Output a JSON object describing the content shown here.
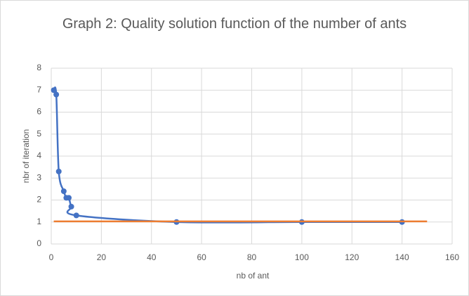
{
  "chart_data": {
    "type": "line",
    "title": "Graph 2: Quality solution function of the number of ants",
    "xlabel": "nb of ant",
    "ylabel": "nbr of iteration",
    "series": [
      {
        "color": "#4472c4",
        "markers": true,
        "smooth": true,
        "x": [
          1,
          2,
          3,
          5,
          6,
          7,
          8,
          10,
          50,
          100,
          140
        ],
        "values": [
          7,
          6.8,
          3.3,
          2.4,
          2.1,
          2.1,
          1.7,
          1.3,
          1,
          1,
          1
        ]
      },
      {
        "color": "#ed7d31",
        "markers": false,
        "smooth": false,
        "x": [
          1,
          150
        ],
        "values": [
          1.03,
          1.03
        ]
      }
    ],
    "xlim": [
      0,
      160
    ],
    "xticks": [
      0,
      20,
      40,
      60,
      80,
      100,
      120,
      140,
      160
    ],
    "ylim": [
      0,
      8
    ],
    "yticks": [
      0,
      1,
      2,
      3,
      4,
      5,
      6,
      7,
      8
    ],
    "grid": true
  }
}
